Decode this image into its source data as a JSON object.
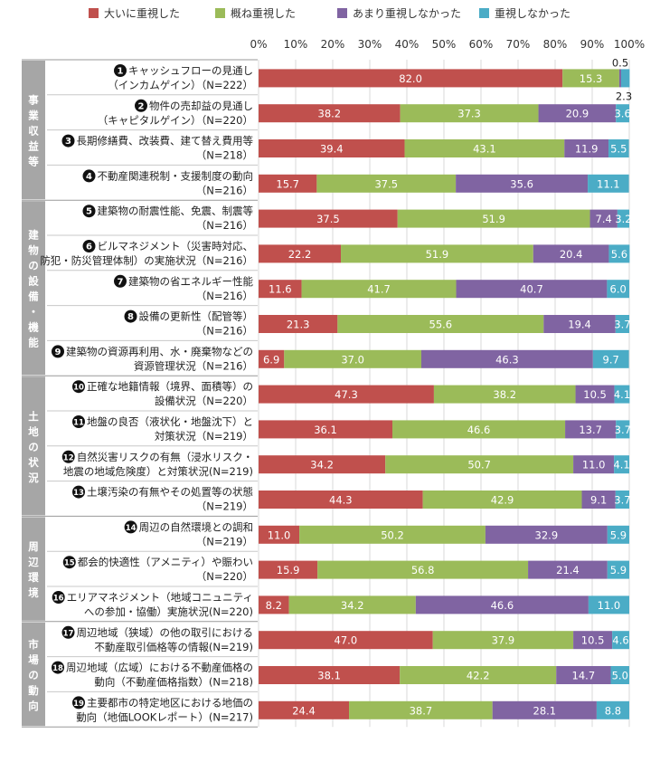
{
  "chart_data": {
    "type": "bar",
    "orientation": "horizontal",
    "stacked": true,
    "xlim": [
      0,
      100
    ],
    "x_ticks": [
      "0%",
      "10%",
      "20%",
      "30%",
      "40%",
      "50%",
      "60%",
      "70%",
      "80%",
      "90%",
      "100%"
    ],
    "legend_position": "top",
    "series": [
      {
        "name": "大いに重視した",
        "color": "#c0504d"
      },
      {
        "name": "概ね重視した",
        "color": "#9bbb59"
      },
      {
        "name": "あまり重視しなかった",
        "color": "#8064a2"
      },
      {
        "name": "重視しなかった",
        "color": "#4bacc6"
      }
    ],
    "groups": [
      {
        "name": "事業収益等",
        "count": 4
      },
      {
        "name": "建物の設備・機能",
        "count": 5
      },
      {
        "name": "土地の状況",
        "count": 4
      },
      {
        "name": "周辺環境",
        "count": 3
      },
      {
        "name": "市場の動向",
        "count": 3
      }
    ],
    "items": [
      {
        "num": "1",
        "line1": "キャッシュフローの見通し",
        "line2": "（インカムゲイン）（N=222）",
        "values": [
          82.0,
          15.3,
          0.5,
          2.3
        ],
        "labels": [
          "82.0",
          "15.3",
          "0.5",
          "2.3"
        ]
      },
      {
        "num": "2",
        "line1": "物件の売却益の見通し",
        "line2": "（キャピタルゲイン）（N=220）",
        "values": [
          38.2,
          37.3,
          20.9,
          3.6
        ],
        "labels": [
          "38.2",
          "37.3",
          "20.9",
          "3.6"
        ]
      },
      {
        "num": "3",
        "line1": "長期修繕費、改装費、建て替え費用等",
        "line2": "（N=218）",
        "values": [
          39.4,
          43.1,
          11.9,
          5.5
        ],
        "labels": [
          "39.4",
          "43.1",
          "11.9",
          "5.5"
        ]
      },
      {
        "num": "4",
        "line1": "不動産関連税制・支援制度の動向",
        "line2": "（N=216）",
        "values": [
          15.7,
          37.5,
          35.6,
          11.1
        ],
        "labels": [
          "15.7",
          "37.5",
          "35.6",
          "11.1"
        ]
      },
      {
        "num": "5",
        "line1": "建築物の耐震性能、免震、制震等",
        "line2": "（N=216）",
        "values": [
          37.5,
          51.9,
          7.4,
          3.2
        ],
        "labels": [
          "37.5",
          "51.9",
          "7.4",
          "3.2"
        ]
      },
      {
        "num": "6",
        "line1": "ビルマネジメント（災害時対応、",
        "line2": "防犯・防災管理体制）の実施状況（N=216）",
        "values": [
          22.2,
          51.9,
          20.4,
          5.6
        ],
        "labels": [
          "22.2",
          "51.9",
          "20.4",
          "5.6"
        ]
      },
      {
        "num": "7",
        "line1": "建築物の省エネルギー性能",
        "line2": "（N=216）",
        "values": [
          11.6,
          41.7,
          40.7,
          6.0
        ],
        "labels": [
          "11.6",
          "41.7",
          "40.7",
          "6.0"
        ]
      },
      {
        "num": "8",
        "line1": "設備の更新性（配管等）",
        "line2": "（N=216）",
        "values": [
          21.3,
          55.6,
          19.4,
          3.7
        ],
        "labels": [
          "21.3",
          "55.6",
          "19.4",
          "3.7"
        ]
      },
      {
        "num": "9",
        "line1": "建築物の資源再利用、水・廃棄物などの",
        "line2": "資源管理状況（N=216）",
        "values": [
          6.9,
          37.0,
          46.3,
          9.7
        ],
        "labels": [
          "6.9",
          "37.0",
          "46.3",
          "9.7"
        ]
      },
      {
        "num": "10",
        "line1": "正確な地籍情報（境界、面積等）の",
        "line2": "設備状況（N=220）",
        "values": [
          47.3,
          38.2,
          10.5,
          4.1
        ],
        "labels": [
          "47.3",
          "38.2",
          "10.5",
          "4.1"
        ]
      },
      {
        "num": "11",
        "line1": "地盤の良否（液状化・地盤沈下）と",
        "line2": "対策状況（N=219）",
        "values": [
          36.1,
          46.6,
          13.7,
          3.7
        ],
        "labels": [
          "36.1",
          "46.6",
          "13.7",
          "3.7"
        ]
      },
      {
        "num": "12",
        "line1": "自然災害リスクの有無（浸水リスク・",
        "line2": "地震の地域危険度）と対策状況(N=219)",
        "values": [
          34.2,
          50.7,
          11.0,
          4.1
        ],
        "labels": [
          "34.2",
          "50.7",
          "11.0",
          "4.1"
        ]
      },
      {
        "num": "13",
        "line1": "土壌汚染の有無やその処置等の状態",
        "line2": "（N=219）",
        "values": [
          44.3,
          42.9,
          9.1,
          3.7
        ],
        "labels": [
          "44.3",
          "42.9",
          "9.1",
          "3.7"
        ]
      },
      {
        "num": "14",
        "line1": "周辺の自然環境との調和",
        "line2": "（N=219）",
        "values": [
          11.0,
          50.2,
          32.9,
          5.9
        ],
        "labels": [
          "11.0",
          "50.2",
          "32.9",
          "5.9"
        ]
      },
      {
        "num": "15",
        "line1": "都会的快適性（アメニティ）や賑わい",
        "line2": "（N=220）",
        "values": [
          15.9,
          56.8,
          21.4,
          5.9
        ],
        "labels": [
          "15.9",
          "56.8",
          "21.4",
          "5.9"
        ]
      },
      {
        "num": "16",
        "line1": "エリアマネジメント（地域コニュニティ",
        "line2": "への参加・協働）実施状況(N=220)",
        "values": [
          8.2,
          34.2,
          46.6,
          11.0
        ],
        "labels": [
          "8.2",
          "34.2",
          "46.6",
          "11.0"
        ]
      },
      {
        "num": "17",
        "line1": "周辺地域（狭域）の他の取引における",
        "line2": "不動産取引価格等の情報(N=219)",
        "values": [
          47.0,
          37.9,
          10.5,
          4.6
        ],
        "labels": [
          "47.0",
          "37.9",
          "10.5",
          "4.6"
        ]
      },
      {
        "num": "18",
        "line1": "周辺地域（広域）における不動産価格の",
        "line2": "動向（不動産価格指数）(N=218)",
        "values": [
          38.1,
          42.2,
          14.7,
          5.0
        ],
        "labels": [
          "38.1",
          "42.2",
          "14.7",
          "5.0"
        ]
      },
      {
        "num": "19",
        "line1": "主要都市の特定地区における地価の",
        "line2": "動向（地価LOOKレポート）(N=217)",
        "values": [
          24.4,
          38.7,
          28.1,
          8.8
        ],
        "labels": [
          "24.4",
          "38.7",
          "28.1",
          "8.8"
        ]
      }
    ]
  }
}
